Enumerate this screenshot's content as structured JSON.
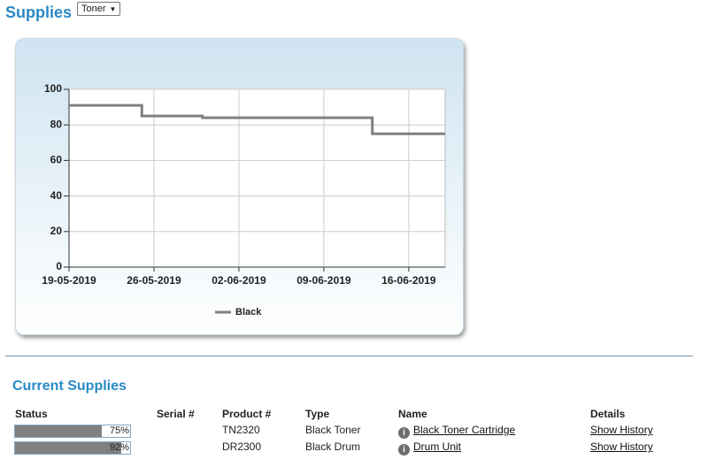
{
  "header": {
    "title": "Supplies",
    "selector": "Toner"
  },
  "chart_data": {
    "type": "step",
    "x": [
      "19-05-2019",
      "25-05-2019",
      "30-05-2019",
      "13-06-2019",
      "19-06-2019"
    ],
    "series": [
      {
        "name": "Black",
        "color": "#808080",
        "values": [
          91,
          85,
          84,
          75,
          75
        ]
      }
    ],
    "xlim": [
      "19-05-2019",
      "19-06-2019"
    ],
    "xticks": [
      "19-05-2019",
      "26-05-2019",
      "02-06-2019",
      "09-06-2019",
      "16-06-2019"
    ],
    "ylim": [
      0,
      100
    ],
    "yticks": [
      0,
      20,
      40,
      60,
      80,
      100
    ],
    "grid": true,
    "legend": "bottom"
  },
  "current_supplies": {
    "title": "Current Supplies",
    "columns": [
      "Status",
      "Serial #",
      "Product #",
      "Type",
      "Name",
      "Details"
    ],
    "rows": [
      {
        "status": 75,
        "status_label": "75%",
        "product": "TN2320",
        "type": "Black Toner",
        "name": "Black Toner Cartridge",
        "details": "Show History"
      },
      {
        "status": 92,
        "status_label": "92%",
        "product": "DR2300",
        "type": "Black Drum",
        "name": "Drum Unit",
        "details": "Show History"
      }
    ]
  }
}
